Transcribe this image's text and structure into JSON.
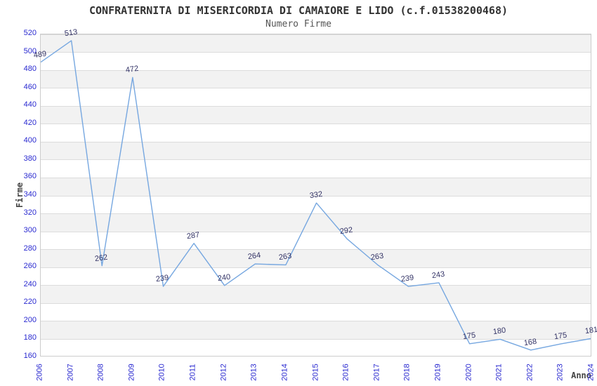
{
  "title": "CONFRATERNITA DI MISERICORDIA DI CAMAIORE E LIDO (c.f.01538200468)",
  "subtitle": "Numero Firme",
  "chart_data": {
    "type": "line",
    "x": [
      2006,
      2007,
      2008,
      2009,
      2010,
      2011,
      2012,
      2013,
      2014,
      2015,
      2016,
      2017,
      2018,
      2019,
      2020,
      2021,
      2022,
      2023,
      2024
    ],
    "values": [
      489,
      513,
      262,
      472,
      239,
      287,
      240,
      264,
      263,
      332,
      292,
      263,
      239,
      243,
      175,
      180,
      168,
      175,
      181
    ],
    "xlabel": "Anno",
    "ylabel": "Firme",
    "ylim": [
      160,
      520
    ],
    "ytick_step": 20,
    "grid": "horizontal",
    "legend_position": "none",
    "colors": {
      "line": "#76a7e0",
      "tick_label": "#2a2ad0",
      "data_label": "#333366",
      "band": "#f2f2f2",
      "gridline": "#dcdcdc",
      "title": "#333333",
      "subtitle": "#555555",
      "axis_title": "#444444"
    }
  }
}
